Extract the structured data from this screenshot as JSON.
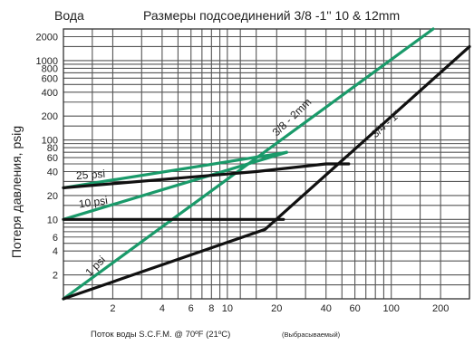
{
  "chart_data": {
    "type": "line",
    "corner_label": "Вода",
    "title": "Размеры подсоединений 3/8 -1'' 10 & 12mm",
    "ylabel": "Потеря давления, psig",
    "xlabel": "Поток воды S.C.F.M. @ 70ºF (21ºC)",
    "xlabel_note": "(Выбрасываемый)",
    "x_scale": "log",
    "y_scale": "log",
    "xlim": [
      1,
      300
    ],
    "ylim": [
      1,
      2500
    ],
    "grid": true,
    "x_ticks": [
      {
        "v": 2,
        "label": "2"
      },
      {
        "v": 4,
        "label": "4"
      },
      {
        "v": 6,
        "label": "6"
      },
      {
        "v": 8,
        "label": "8"
      },
      {
        "v": 10,
        "label": "10"
      },
      {
        "v": 20,
        "label": "20"
      },
      {
        "v": 40,
        "label": "40"
      },
      {
        "v": 60,
        "label": "60"
      },
      {
        "v": 100,
        "label": "100"
      },
      {
        "v": 200,
        "label": "200"
      }
    ],
    "y_ticks": [
      {
        "v": 2,
        "label": "2"
      },
      {
        "v": 4,
        "label": "4"
      },
      {
        "v": 6,
        "label": "6"
      },
      {
        "v": 10,
        "label": "10"
      },
      {
        "v": 20,
        "label": "20"
      },
      {
        "v": 40,
        "label": "40"
      },
      {
        "v": 60,
        "label": "60"
      },
      {
        "v": 80,
        "label": "80"
      },
      {
        "v": 100,
        "label": "100"
      },
      {
        "v": 200,
        "label": "200"
      },
      {
        "v": 400,
        "label": "400"
      },
      {
        "v": 600,
        "label": "600"
      },
      {
        "v": 800,
        "label": "800"
      },
      {
        "v": 1000,
        "label": "1000"
      },
      {
        "v": 2000,
        "label": "2000"
      }
    ],
    "x_grid": [
      1.5,
      2,
      3,
      4,
      5,
      6,
      7,
      8,
      9,
      10,
      12,
      15,
      20,
      30,
      40,
      50,
      60,
      70,
      80,
      90,
      100,
      150,
      200,
      300
    ],
    "y_grid": [
      1.5,
      2,
      3,
      4,
      5,
      6,
      7,
      8,
      9,
      10,
      15,
      20,
      30,
      40,
      50,
      60,
      70,
      80,
      90,
      100,
      150,
      200,
      300,
      400,
      500,
      600,
      700,
      800,
      900,
      1000,
      1500,
      2000,
      2500
    ],
    "series": [
      {
        "name": "",
        "color": "#1a9a6a",
        "points": [
          [
            1,
            1
          ],
          [
            180,
            2500
          ]
        ]
      },
      {
        "name": "",
        "color": "#1a9a6a",
        "points": [
          [
            1,
            10
          ],
          [
            23,
            70
          ]
        ]
      },
      {
        "name": "",
        "color": "#1a9a6a",
        "points": [
          [
            1,
            25
          ],
          [
            23,
            70
          ]
        ]
      },
      {
        "name": "",
        "color": "#111111",
        "points": [
          [
            1,
            25
          ],
          [
            15,
            40
          ],
          [
            40,
            50
          ],
          [
            55,
            50
          ]
        ]
      },
      {
        "name": "",
        "color": "#111111",
        "points": [
          [
            1,
            10
          ],
          [
            22,
            10
          ]
        ]
      },
      {
        "name": "",
        "color": "#111111",
        "points": [
          [
            1,
            1
          ],
          [
            17,
            7.5
          ],
          [
            300,
            1500
          ]
        ]
      }
    ],
    "annotations": [
      {
        "text": "25 psi",
        "x": 1.2,
        "y": 32,
        "rotate": -4
      },
      {
        "text": "10 psi",
        "x": 1.25,
        "y": 14,
        "rotate": -8
      },
      {
        "text": "1 psi",
        "x": 1.45,
        "y": 1.9,
        "rotate": -45
      },
      {
        "text": "3/8 - 2mm",
        "x": 20,
        "y": 110,
        "rotate": -44
      },
      {
        "text": "3/4 - 1\"",
        "x": 80,
        "y": 105,
        "rotate": -42
      }
    ]
  }
}
